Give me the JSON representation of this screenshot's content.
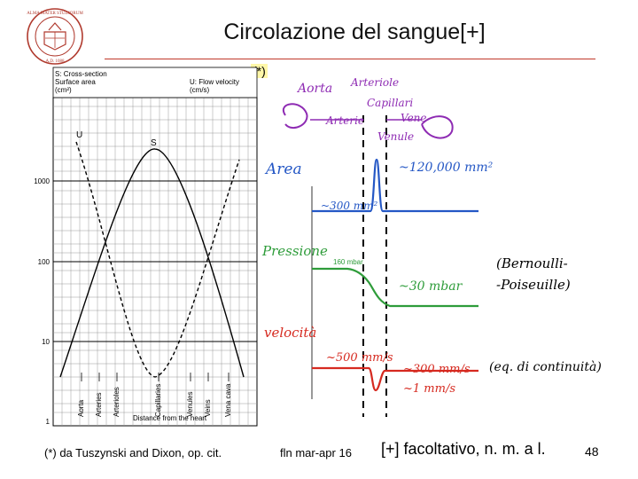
{
  "slide": {
    "title": "Circolazione del sangue[+]",
    "figure_tag": "(*)",
    "page_number": "48"
  },
  "figure": {
    "left_chart": {
      "legend_s_title": "S: Cross-section",
      "legend_s_sub": "Surface area",
      "legend_s_unit": "(cm²)",
      "legend_u_title": "U: Flow velocity",
      "legend_u_unit": "(cm/s)",
      "curve_u_label": "U",
      "curve_s_label": "S",
      "y_ticks": [
        "1000",
        "100",
        "10",
        "1"
      ],
      "x_label": "Distance from the heart",
      "x_categories": [
        "Aorta",
        "Arteries",
        "Arterioles",
        "Capillaries",
        "Venules",
        "Veins",
        "Vena cava"
      ]
    },
    "annotations": {
      "aorta": "Aorta",
      "arteriole": "Arteriole",
      "capillari": "Capillari",
      "arterie": "Arterie",
      "vene": "Vene",
      "venule": "Venule",
      "area": "Area",
      "area_cap_value": "~120,000 mm²",
      "area_aorta_value": "~300 mm²",
      "pressione": "Pressione",
      "pressure_start": "160 mbar",
      "pressure_end": "~30 mbar",
      "velocita": "velocità",
      "vel_aorta": "~500 mm/s",
      "vel_mid": "~300 mm/s",
      "vel_cap": "~1 mm/s",
      "bernoulli_line1": "(Bernoulli-",
      "bernoulli_line2": "-Poiseuille)",
      "continuita": "(eq. di continuità)"
    },
    "seal_text": "ALMA MATER STUDIORUM A.D. 1088"
  },
  "footer": {
    "source": "(*) da Tuszynski and Dixon, op. cit.",
    "author": "fln mar-apr 16",
    "note": "[+] facoltativo, n. m. a l."
  }
}
